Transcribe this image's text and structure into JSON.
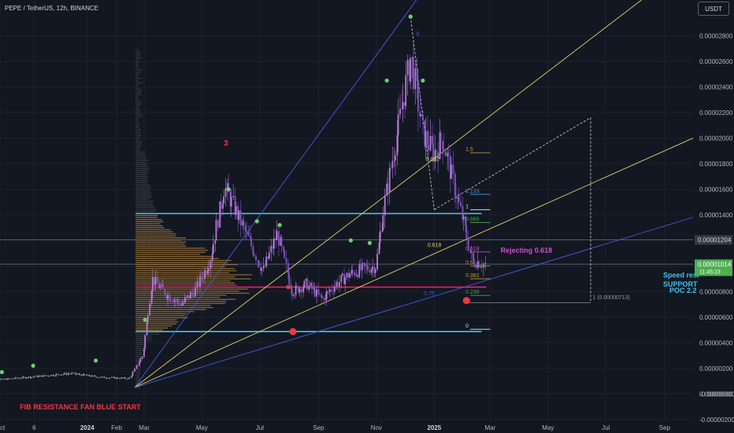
{
  "header": {
    "symbol_line": "PEPE / TetherUS, 12h, BINANCE",
    "currency_button": "USDT"
  },
  "colors": {
    "background": "#131722",
    "up_candle": "#b77bd4",
    "green_marker": "#6ccf6e",
    "red_marker": "#f23645",
    "cyan_line": "#3dc6ec",
    "magenta_line": "#e91e63",
    "yellow_fan": "#e0d16a",
    "blue_fan": "#3f5fd6",
    "volume_profile": "#d9993a",
    "current_price_badge": "#4caf50"
  },
  "chart_data": {
    "type": "candlestick",
    "y_axis": {
      "ticks": [
        "0.00002800",
        "0.00002600",
        "0.00002400",
        "0.00002200",
        "0.00002000",
        "0.00001800",
        "0.00001600",
        "0.00001400",
        "0.00001200",
        "0.00001000",
        "0.00000800",
        "0.00000600",
        "0.00000400",
        "0.00000200",
        "0.00000000",
        "-0.00000000",
        "-0.00000200"
      ],
      "tick_values": [
        2.8e-05,
        2.6e-05,
        2.4e-05,
        2.2e-05,
        2e-05,
        1.8e-05,
        1.6e-05,
        1.4e-05,
        1.2e-05,
        1e-05,
        8e-06,
        6e-06,
        4e-06,
        2e-06,
        0,
        -1e-09,
        -2e-06
      ],
      "range": [
        -2.2e-06,
        3.08e-05
      ]
    },
    "x_axis": {
      "ticks": [
        "Oct",
        "6",
        "2024",
        "Feb",
        "Mar",
        "May",
        "Jul",
        "Sep",
        "Nov",
        "2025",
        "Mar",
        "May",
        "Jul",
        "Sep"
      ],
      "bold_ticks": [
        "2024",
        "2025"
      ],
      "tick_dates": [
        "2023-10-01",
        "2023-11-06",
        "2024-01-01",
        "2024-02-01",
        "2024-03-01",
        "2024-05-01",
        "2024-07-01",
        "2024-09-01",
        "2024-11-01",
        "2025-01-01",
        "2025-03-01",
        "2025-05-01",
        "2025-07-01",
        "2025-09-01"
      ],
      "range": [
        "2023-10-01",
        "2025-10-01"
      ]
    },
    "price_labels": [
      {
        "value": "0.00001204",
        "style": "grey"
      },
      {
        "value": "0.00001014",
        "style": "green"
      },
      {
        "value": "11:45:23",
        "style": "green-sub"
      }
    ],
    "horizontal_levels": [
      {
        "price": 1.41e-05,
        "color": "cyan"
      },
      {
        "price": 8.35e-06,
        "color": "magenta"
      },
      {
        "price": 4.87e-06,
        "color": "cyan"
      },
      {
        "price": 1.204e-05,
        "color": "grey"
      },
      {
        "price": 1.014e-05,
        "color": "grey"
      }
    ],
    "fib_levels": [
      {
        "label": "1.5",
        "price": 1.885e-05,
        "color": "#c99b3a"
      },
      {
        "label": "1.133",
        "price": 1.56e-05,
        "color": "#3f8fd6"
      },
      {
        "label": "1",
        "price": 1.44e-05,
        "color": "#d1d4dc"
      },
      {
        "label": "0.886",
        "price": 1.34e-05,
        "color": "#4f9f4f"
      },
      {
        "label": "0.618",
        "price": 1.11e-05,
        "color": "#d04fd0"
      },
      {
        "label": "0.5",
        "price": 1e-05,
        "color": "#c99b3a"
      },
      {
        "label": "0.382",
        "price": 9e-06,
        "color": "#c99b3a"
      },
      {
        "label": "0.236",
        "price": 7.7e-06,
        "color": "#4f9f4f"
      },
      {
        "label": "0",
        "price": 5.05e-06,
        "color": "#d1d4dc"
      }
    ],
    "fan_labels": [
      "0.882",
      "0.618",
      "0.75",
      "0"
    ],
    "annotations": [
      {
        "text": "3",
        "color": "#f23645"
      },
      {
        "text": "Rejecting 0.618",
        "color": "#d04fd0"
      },
      {
        "text": "FIB RESISTANCE FAN BLUE START",
        "color": "#f23645"
      },
      {
        "text": "Speed resi",
        "color": "#3dc6ec"
      },
      {
        "text": "SUPPORT",
        "color": "#3dc6ec"
      },
      {
        "text": "POC 2.2",
        "color": "#3dc6ec"
      },
      {
        "text": "1 (0.00000713)",
        "color": "#9598a1"
      }
    ],
    "price_path": [
      [
        "2023-09-15",
        1e-06
      ],
      [
        "2023-10-15",
        1.2e-06
      ],
      [
        "2023-11-15",
        1.4e-06
      ],
      [
        "2023-12-15",
        1.6e-06
      ],
      [
        "2024-01-15",
        1.3e-06
      ],
      [
        "2024-02-15",
        1.2e-06
      ],
      [
        "2024-02-29",
        3e-06
      ],
      [
        "2024-03-10",
        9e-06
      ],
      [
        "2024-03-25",
        7.8e-06
      ],
      [
        "2024-04-10",
        7e-06
      ],
      [
        "2024-04-25",
        8.2e-06
      ],
      [
        "2024-05-10",
        1.05e-05
      ],
      [
        "2024-05-25",
        1.62e-05
      ],
      [
        "2024-06-05",
        1.45e-05
      ],
      [
        "2024-06-20",
        1.2e-05
      ],
      [
        "2024-07-05",
        9.6e-06
      ],
      [
        "2024-07-20",
        1.25e-05
      ],
      [
        "2024-08-05",
        8e-06
      ],
      [
        "2024-08-20",
        8.6e-06
      ],
      [
        "2024-09-05",
        7.4e-06
      ],
      [
        "2024-09-20",
        8.6e-06
      ],
      [
        "2024-10-05",
        9.4e-06
      ],
      [
        "2024-10-20",
        9.8e-06
      ],
      [
        "2024-11-01",
        1e-05
      ],
      [
        "2024-11-10",
        1.5e-05
      ],
      [
        "2024-11-25",
        2.1e-05
      ],
      [
        "2024-12-08",
        2.64e-05
      ],
      [
        "2024-12-20",
        2.05e-05
      ],
      [
        "2025-01-01",
        1.88e-05
      ],
      [
        "2025-01-10",
        2e-05
      ],
      [
        "2025-01-20",
        1.7e-05
      ],
      [
        "2025-02-01",
        1.35e-05
      ],
      [
        "2025-02-10",
        1.05e-05
      ],
      [
        "2025-02-25",
        1.01e-05
      ]
    ],
    "markers": [
      {
        "date": "2023-10-03",
        "price": 1.7e-06,
        "color": "green"
      },
      {
        "date": "2023-11-05",
        "price": 2.2e-06,
        "color": "green"
      },
      {
        "date": "2024-01-10",
        "price": 2.6e-06,
        "color": "green"
      },
      {
        "date": "2024-03-02",
        "price": 5.8e-06,
        "color": "green"
      },
      {
        "date": "2024-05-29",
        "price": 1.6e-05,
        "color": "green"
      },
      {
        "date": "2024-06-28",
        "price": 1.35e-05,
        "color": "green"
      },
      {
        "date": "2024-07-22",
        "price": 1.32e-05,
        "color": "green"
      },
      {
        "date": "2024-10-05",
        "price": 1.2e-05,
        "color": "green"
      },
      {
        "date": "2024-10-25",
        "price": 1.18e-05,
        "color": "green"
      },
      {
        "date": "2024-11-12",
        "price": 2.45e-05,
        "color": "green"
      },
      {
        "date": "2024-12-07",
        "price": 2.95e-05,
        "color": "green"
      },
      {
        "date": "2024-12-20",
        "price": 2.45e-05,
        "color": "green"
      },
      {
        "date": "2024-07-31",
        "price": 8.35e-06,
        "color": "red"
      },
      {
        "date": "2024-08-05",
        "price": 4.87e-06,
        "color": "red-big"
      },
      {
        "date": "2025-02-04",
        "price": 7.3e-06,
        "color": "red-big"
      }
    ]
  }
}
